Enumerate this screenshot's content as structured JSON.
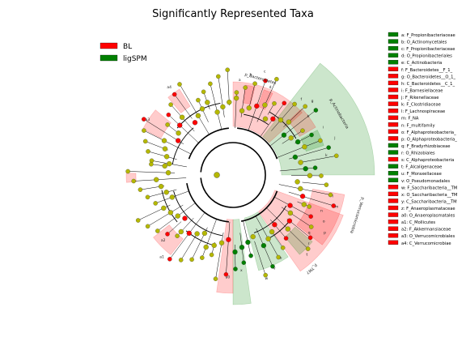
{
  "chart_data": {
    "type": "cladogram",
    "title": "Significantly Represented Taxa",
    "legend": [
      {
        "name": "BL",
        "color": "#ff0000"
      },
      {
        "name": "ligSPM",
        "color": "#008000"
      }
    ],
    "colors": {
      "BL": "#ff0000",
      "ligSPM": "#008000",
      "neutral": "#b5b800"
    },
    "taxa_key": [
      {
        "label": "a: F_Propionibacteriaceae",
        "group": "ligSPM"
      },
      {
        "label": "b: O_Actinomycetales",
        "group": "ligSPM"
      },
      {
        "label": "c: F_Propionibacteriaceae",
        "group": "ligSPM"
      },
      {
        "label": "d: O_Propionibacteriales",
        "group": "ligSPM"
      },
      {
        "label": "e: C_Actinobacteria",
        "group": "ligSPM"
      },
      {
        "label": "f: F_Bacteroidetes__F_1_",
        "group": "BL"
      },
      {
        "label": "g: O_Bacteroidetes__O_1_",
        "group": "BL"
      },
      {
        "label": "h: C_Bacteroidetes__C_1_",
        "group": "BL"
      },
      {
        "label": "i: F_Barnesiellaceae",
        "group": "BL"
      },
      {
        "label": "j: F_Rikenellaceae",
        "group": "BL"
      },
      {
        "label": "k: F_Clostridiaceae",
        "group": "BL"
      },
      {
        "label": "l: F_Lachnospiraceae",
        "group": "BL"
      },
      {
        "label": "m: F_NA",
        "group": "BL"
      },
      {
        "label": "n: F_multifamily",
        "group": "BL"
      },
      {
        "label": "o: F_Alphaproteobacteria_",
        "group": "BL"
      },
      {
        "label": "p: O_Alphaproteobacteria_",
        "group": "BL"
      },
      {
        "label": "q: F_Bradyrhizobiaceae",
        "group": "ligSPM"
      },
      {
        "label": "r: O_Rhizobiales",
        "group": "ligSPM"
      },
      {
        "label": "s: C_Alphaproteobacteria",
        "group": "BL"
      },
      {
        "label": "t: F_Alcaligenaceae",
        "group": "ligSPM"
      },
      {
        "label": "u: F_Moraxellaceae",
        "group": "ligSPM"
      },
      {
        "label": "v: O_Pseudomonadales",
        "group": "ligSPM"
      },
      {
        "label": "w: F_Saccharibacteria__TM",
        "group": "BL"
      },
      {
        "label": "x: O_Saccharibacteria__TM",
        "group": "BL"
      },
      {
        "label": "y: C_Saccharibacteria__TM",
        "group": "BL"
      },
      {
        "label": "z: F_Anaeroplasmataceae",
        "group": "BL"
      },
      {
        "label": "a0: O_Anaeroplasmatales",
        "group": "BL"
      },
      {
        "label": "a1: C_Mollicutes",
        "group": "BL"
      },
      {
        "label": "a2: F_Akkermansiaceae",
        "group": "BL"
      },
      {
        "label": "a3: O_Verrucomicrobiales",
        "group": "BL"
      },
      {
        "label": "a4: C_Verrucomicrobiae",
        "group": "BL"
      }
    ],
    "clade_labels": [
      {
        "text": "p_Bacteroidetes",
        "group": "BL"
      },
      {
        "text": "p_Actinobacteria",
        "group": "ligSPM"
      },
      {
        "text": "p_Verrucomicrobia",
        "group": "BL"
      },
      {
        "text": "p_TM7",
        "group": "BL"
      }
    ],
    "sector_letters": [
      "a",
      "b",
      "c",
      "d",
      "f",
      "g",
      "h",
      "i",
      "j",
      "k",
      "l",
      "m",
      "n",
      "o",
      "p",
      "q",
      "r",
      "t",
      "u",
      "v",
      "w",
      "x",
      "a0",
      "a1",
      "a2",
      "a3",
      "a4"
    ]
  }
}
